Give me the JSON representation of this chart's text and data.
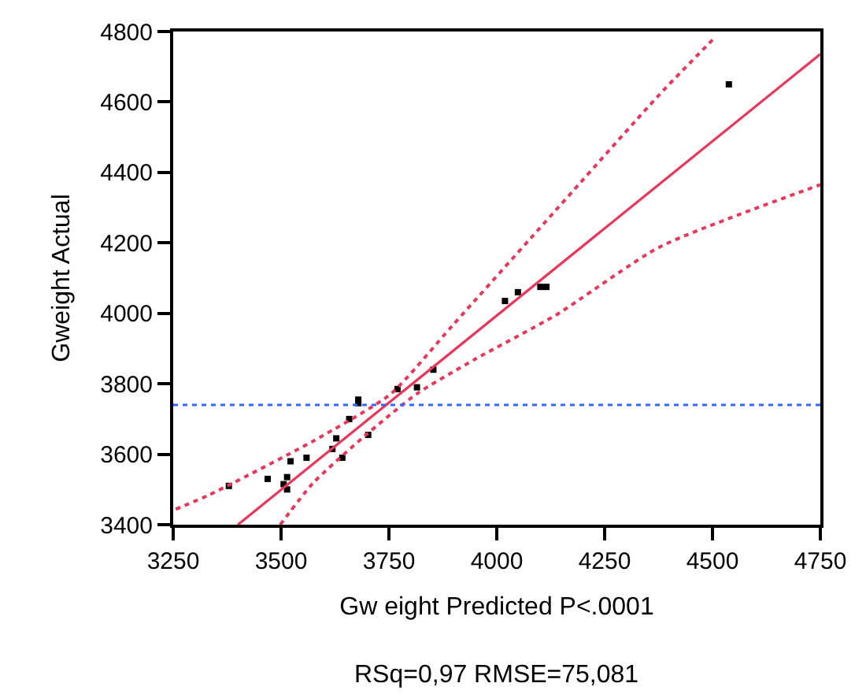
{
  "chart_data": {
    "type": "scatter",
    "xlabel": "Gw eight Predicted P<.0001",
    "ylabel": "Gweight Actual",
    "annotations": [
      "RSq=0,97 RMSE=75,081"
    ],
    "xlim": [
      3250,
      4750
    ],
    "xticks": [
      3250,
      3500,
      3750,
      4000,
      4250,
      4500,
      4750
    ],
    "ylim": [
      3400,
      4800
    ],
    "yticks": [
      3400,
      3600,
      3800,
      4000,
      4200,
      4400,
      4600,
      4800
    ],
    "series": [
      {
        "marker": "square",
        "color": "#000000",
        "x": [
          3379,
          3469,
          3506,
          3514,
          3514,
          3522,
          3559,
          3619,
          3628,
          3642,
          3658,
          3679,
          3679,
          3702,
          3770,
          3815,
          3853,
          4019,
          4049,
          4101,
          4115,
          4538
        ],
        "values": [
          3510,
          3530,
          3515,
          3535,
          3500,
          3580,
          3590,
          3615,
          3645,
          3590,
          3700,
          3755,
          3745,
          3655,
          3785,
          3790,
          3840,
          4035,
          4060,
          4075,
          4075,
          4650
        ]
      },
      {
        "type": "line",
        "line_style": "solid",
        "color": "#e8375a",
        "x": [
          3400,
          4750
        ],
        "values": [
          3400,
          4736
        ]
      },
      {
        "type": "line",
        "line_style": "dotted",
        "color": "#e8375a",
        "x": [
          3256,
          3334,
          3574,
          3754,
          3897,
          4137,
          4377,
          4507
        ],
        "values": [
          3444,
          3485,
          3637,
          3771,
          3965,
          4293,
          4621,
          4785
        ]
      },
      {
        "type": "line",
        "line_style": "dotted",
        "color": "#e8375a",
        "x": [
          3498,
          3574,
          3694,
          3814,
          3950,
          4137,
          4377,
          4750
        ],
        "values": [
          3400,
          3518,
          3652,
          3771,
          3870,
          3995,
          4188,
          4365
        ]
      }
    ],
    "ref_lines": [
      {
        "axis": "y",
        "value": 3740,
        "color": "#3366ff",
        "line_style": "dotted"
      }
    ]
  }
}
